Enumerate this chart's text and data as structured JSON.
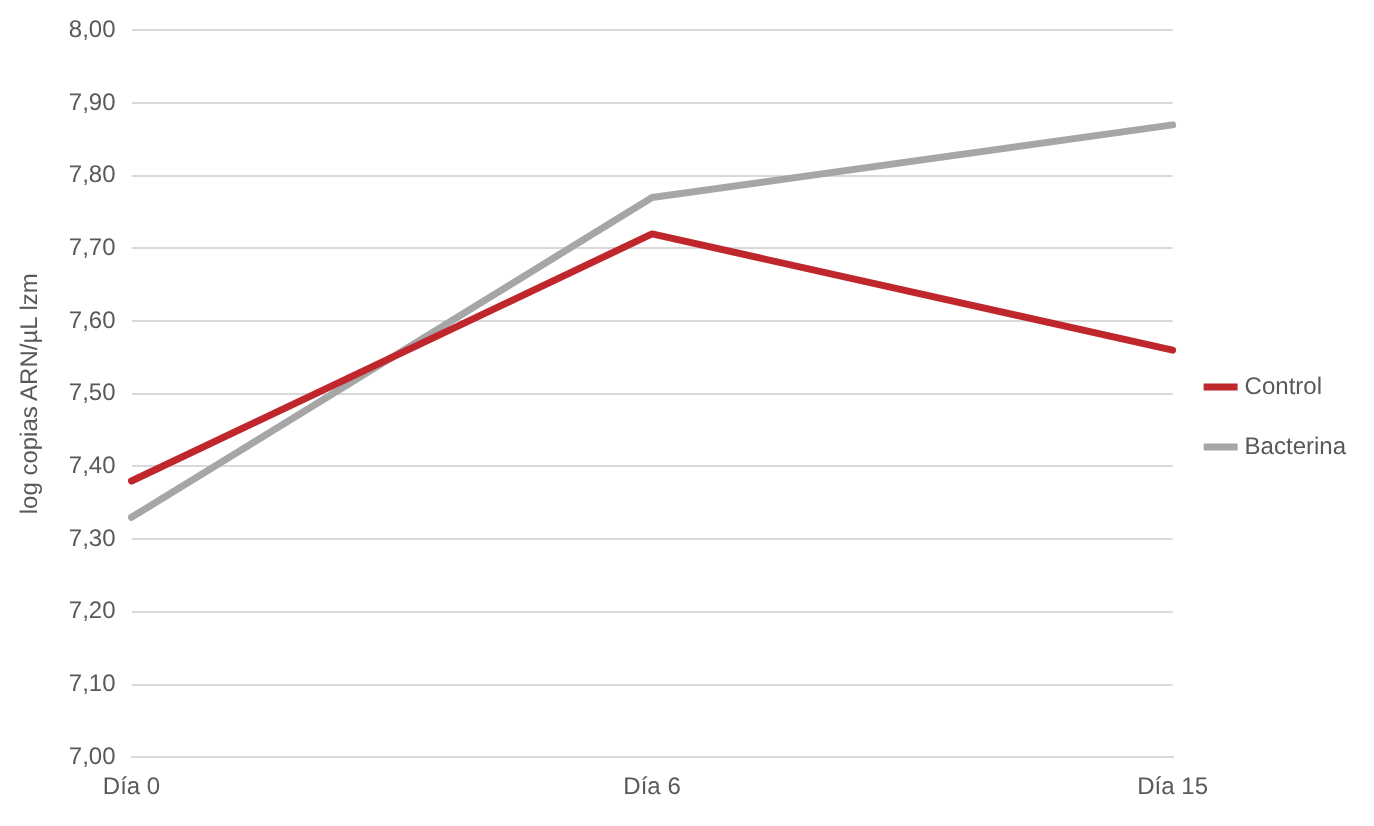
{
  "chart_data": {
    "type": "line",
    "ylabel": "log copias ARN/µL lzm",
    "categories": [
      "Día 0",
      "Día 6",
      "Día 15"
    ],
    "series": [
      {
        "name": "Control",
        "color": "#c0272d",
        "values": [
          7.38,
          7.72,
          7.56
        ]
      },
      {
        "name": "Bacterina",
        "color": "#a6a6a6",
        "values": [
          7.33,
          7.77,
          7.87
        ]
      }
    ],
    "ylim": [
      7.0,
      8.0
    ],
    "yticks": [
      {
        "value": 7.0,
        "label": "7,00"
      },
      {
        "value": 7.1,
        "label": "7,10"
      },
      {
        "value": 7.2,
        "label": "7,20"
      },
      {
        "value": 7.3,
        "label": "7,30"
      },
      {
        "value": 7.4,
        "label": "7,40"
      },
      {
        "value": 7.5,
        "label": "7,50"
      },
      {
        "value": 7.6,
        "label": "7,60"
      },
      {
        "value": 7.7,
        "label": "7,70"
      },
      {
        "value": 7.8,
        "label": "7,80"
      },
      {
        "value": 7.9,
        "label": "7,90"
      },
      {
        "value": 8.0,
        "label": "8,00"
      }
    ],
    "grid": "y",
    "legend": "right",
    "marker": "none",
    "line_style": "solid"
  }
}
